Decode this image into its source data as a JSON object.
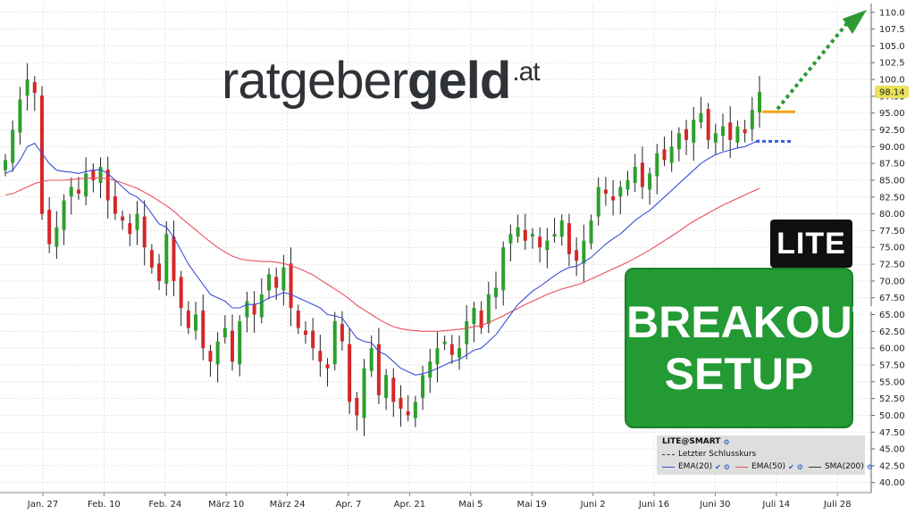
{
  "logo": {
    "part1": "ratgeber",
    "part2": "geld",
    "tld": ".at"
  },
  "badge": "LITE",
  "setup": {
    "line1": "BREAKOUT",
    "line2": "SETUP"
  },
  "price_tag": "98.14",
  "legend": {
    "symbol": "LITE@SMART",
    "last_close": "Letzter Schlusskurs",
    "ema20": "EMA(20)",
    "ema50": "EMA(50)",
    "sma200": "SMA(200)"
  },
  "colors": {
    "up": "#2ca02c",
    "down": "#d62728",
    "ema20": "#3a4fd8",
    "ema50": "#e8505b",
    "resistance": "#f2a51a",
    "support": "#3a5ae8",
    "arrow": "#2e9a34"
  },
  "chart_data": {
    "type": "candlestick",
    "x_labels": [
      "Jan. 27",
      "Feb. 10",
      "Feb. 24",
      "März 10",
      "März 24",
      "Apr. 7",
      "Apr. 21",
      "Mai 5",
      "Mai 19",
      "Juni 2",
      "Juni 16",
      "Juni 30",
      "Juli 14",
      "Juli 28"
    ],
    "y_ticks": [
      "40.00",
      "42.50",
      "45.00",
      "47.50",
      "50.00",
      "52.50",
      "55.00",
      "57.50",
      "60.00",
      "62.50",
      "65.00",
      "67.50",
      "70.00",
      "72.50",
      "75.00",
      "77.50",
      "80.00",
      "82.50",
      "85.00",
      "87.50",
      "90.00",
      "92.50",
      "95.00",
      "97.50",
      "100.0",
      "102.5",
      "105.0",
      "107.5",
      "110.0"
    ],
    "ylim": [
      38.5,
      111.3
    ],
    "last_close": 98.14,
    "resistance_level": 95.2,
    "support_level": 90.8,
    "closes": [
      88,
      92.5,
      97,
      100,
      98,
      80,
      75.5,
      78,
      82,
      84,
      83,
      86,
      85,
      87,
      82,
      80,
      79,
      77,
      80,
      75,
      72,
      70,
      77,
      70,
      66,
      63,
      65,
      60,
      58,
      61,
      63,
      58,
      64,
      67,
      65,
      68,
      71,
      69,
      72,
      66,
      63,
      62,
      60,
      58,
      57,
      64,
      61,
      52,
      50,
      57,
      60,
      53,
      56,
      52,
      51,
      50,
      52,
      56,
      58,
      60,
      61,
      59,
      60,
      64,
      66,
      63,
      68,
      69,
      75,
      77,
      78,
      76,
      77,
      75,
      76,
      77,
      79,
      74,
      73,
      76,
      79,
      84,
      83,
      82,
      84,
      85,
      87,
      84,
      86,
      89,
      88,
      90,
      92,
      91,
      94,
      95,
      91,
      92,
      93,
      91,
      93,
      92,
      95.5,
      98.14
    ],
    "ema20": [
      86,
      86.5,
      88,
      90,
      90.5,
      89,
      87.5,
      86.5,
      86.3,
      86.2,
      86,
      86.3,
      86.5,
      86.6,
      86,
      85,
      84,
      83,
      82.5,
      81.5,
      80,
      78.5,
      78,
      76.5,
      74.5,
      72.5,
      71,
      69.5,
      68,
      67.5,
      67,
      66,
      66,
      66.5,
      66.5,
      66.8,
      67.5,
      67.8,
      68.3,
      68,
      67.5,
      67,
      66.5,
      66,
      65,
      64.8,
      64.5,
      63,
      61.5,
      61,
      60.8,
      59.5,
      59,
      58,
      57,
      56.5,
      56,
      56.2,
      56.5,
      57,
      57.5,
      58,
      58.3,
      59,
      59.7,
      60,
      61,
      62,
      63.5,
      65,
      66.5,
      67.5,
      68.5,
      69.2,
      70,
      70.8,
      71.5,
      72,
      72.2,
      72.8,
      73.5,
      74.5,
      75.5,
      76.3,
      77,
      78,
      79,
      79.8,
      80.5,
      81.5,
      82.5,
      83.5,
      84.5,
      85.5,
      86.5,
      87.5,
      88.2,
      88.8,
      89.2,
      89.5,
      89.8,
      90,
      90.5,
      91
    ],
    "ema50": [
      82.8,
      83,
      83.5,
      84,
      84.5,
      84.8,
      85,
      85,
      85,
      85.1,
      85.2,
      85.3,
      85.3,
      85.4,
      85.2,
      85,
      84.6,
      84.2,
      83.8,
      83.2,
      82.6,
      81.9,
      81.2,
      80.4,
      79.4,
      78.5,
      77.6,
      76.7,
      75.8,
      75,
      74.3,
      73.7,
      73.3,
      73.1,
      73,
      72.9,
      72.9,
      72.8,
      72.6,
      72.3,
      71.9,
      71.4,
      70.9,
      70.2,
      69.5,
      68.8,
      68.1,
      67.3,
      66.4,
      65.7,
      65,
      64.3,
      63.7,
      63.2,
      62.9,
      62.7,
      62.6,
      62.5,
      62.5,
      62.5,
      62.6,
      62.7,
      62.8,
      63,
      63.2,
      63.4,
      63.8,
      64.3,
      64.8,
      65.4,
      65.9,
      66.5,
      67,
      67.5,
      68,
      68.4,
      68.8,
      69.1,
      69.4,
      69.8,
      70.3,
      70.8,
      71.3,
      71.8,
      72.3,
      72.8,
      73.4,
      74,
      74.6,
      75.3,
      76,
      76.7,
      77.4,
      78.2,
      78.9,
      79.5,
      80.1,
      80.7,
      81.3,
      81.8,
      82.3,
      82.8,
      83.3,
      83.8
    ]
  }
}
